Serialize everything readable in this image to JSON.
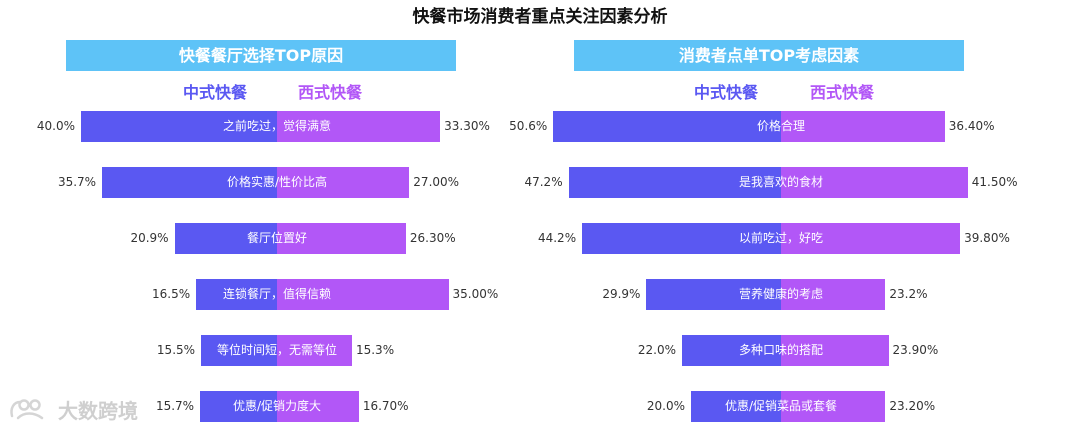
{
  "title": "快餐市场消费者重点关注因素分析",
  "watermark": {
    "text": "大数跨境",
    "icon": "brand-logo-icon"
  },
  "colors": {
    "header_bg": "#5ec3f7",
    "chinese_bar": "#5a58f2",
    "western_bar": "#b257f7",
    "chinese_legend": "#5a58f2",
    "western_legend": "#b257f7"
  },
  "chart_data": [
    {
      "type": "bar",
      "title": "快餐餐厅选择TOP原因",
      "orientation": "diverging-horizontal",
      "series": [
        {
          "name": "中式快餐",
          "values": [
            40.0,
            35.7,
            20.9,
            16.5,
            15.5,
            15.7
          ],
          "labels": [
            "40.0%",
            "35.7%",
            "20.9%",
            "16.5%",
            "15.5%",
            "15.7%"
          ]
        },
        {
          "name": "西式快餐",
          "values": [
            33.3,
            27.0,
            26.3,
            35.0,
            15.3,
            16.7
          ],
          "labels": [
            "33.30%",
            "27.00%",
            "26.30%",
            "35.00%",
            "15.3%",
            "16.70%"
          ]
        }
      ],
      "categories": [
        "之前吃过，觉得满意",
        "价格实惠/性价比高",
        "餐厅位置好",
        "连锁餐厅，值得信赖",
        "等位时间短，无需等位",
        "优惠/促销力度大"
      ]
    },
    {
      "type": "bar",
      "title": "消费者点单TOP考虑因素",
      "orientation": "diverging-horizontal",
      "series": [
        {
          "name": "中式快餐",
          "values": [
            50.6,
            47.2,
            44.2,
            29.9,
            22.0,
            20.0
          ],
          "labels": [
            "50.6%",
            "47.2%",
            "44.2%",
            "29.9%",
            "22.0%",
            "20.0%"
          ]
        },
        {
          "name": "西式快餐",
          "values": [
            36.4,
            41.5,
            39.8,
            23.2,
            23.9,
            23.2
          ],
          "labels": [
            "36.40%",
            "41.50%",
            "39.80%",
            "23.2%",
            "23.90%",
            "23.20%"
          ]
        }
      ],
      "categories": [
        "价格合理",
        "是我喜欢的食材",
        "以前吃过，好吃",
        "营养健康的考虑",
        "多种口味的搭配",
        "优惠/促销菜品或套餐"
      ]
    }
  ]
}
